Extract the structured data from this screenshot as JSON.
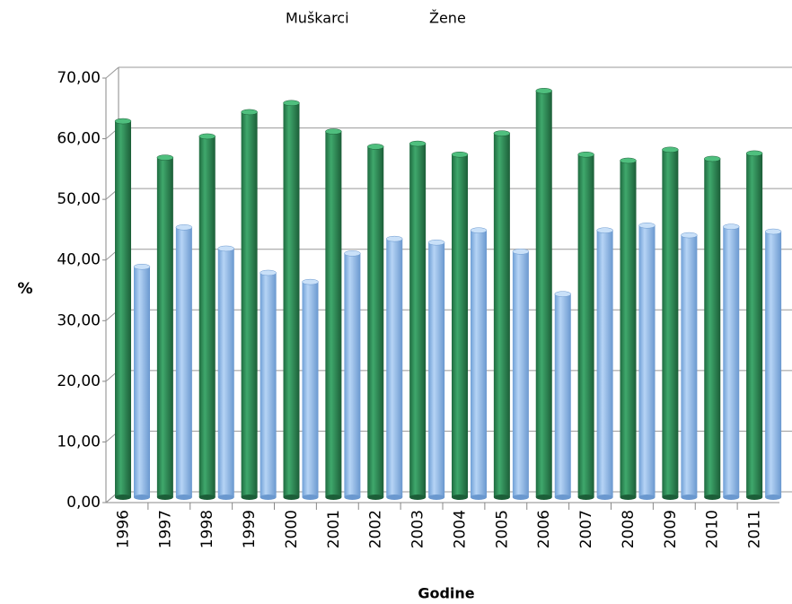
{
  "chart_data": {
    "type": "bar",
    "ylabel": "%",
    "xlabel": "Godine",
    "categories": [
      "1996",
      "1997",
      "1998",
      "1999",
      "2000",
      "2001",
      "2002",
      "2003",
      "2004",
      "2005",
      "2006",
      "2007",
      "2008",
      "2009",
      "2010",
      "2011"
    ],
    "series": [
      {
        "name": "Muškarci",
        "color": "#2e8b57",
        "values": [
          62,
          56,
          59.5,
          63.5,
          65,
          60.3,
          57.8,
          58.3,
          56.5,
          60,
          67,
          56.5,
          55.5,
          57.3,
          55.8,
          56.7
        ]
      },
      {
        "name": "Žene",
        "color": "#8db8e8",
        "values": [
          38,
          44.5,
          41,
          37,
          35.5,
          40.2,
          42.6,
          42,
          44,
          40.5,
          33.5,
          44,
          44.8,
          43.2,
          44.6,
          43.8
        ]
      }
    ],
    "ylim": [
      0,
      70
    ],
    "yticks": [
      {
        "value": 0,
        "label": "0,00"
      },
      {
        "value": 10,
        "label": "10,00"
      },
      {
        "value": 20,
        "label": "20,00"
      },
      {
        "value": 30,
        "label": "30,00"
      },
      {
        "value": 40,
        "label": "40,00"
      },
      {
        "value": 50,
        "label": "50,00"
      },
      {
        "value": 60,
        "label": "60,00"
      },
      {
        "value": 70,
        "label": "70,00"
      }
    ],
    "grid": true
  }
}
